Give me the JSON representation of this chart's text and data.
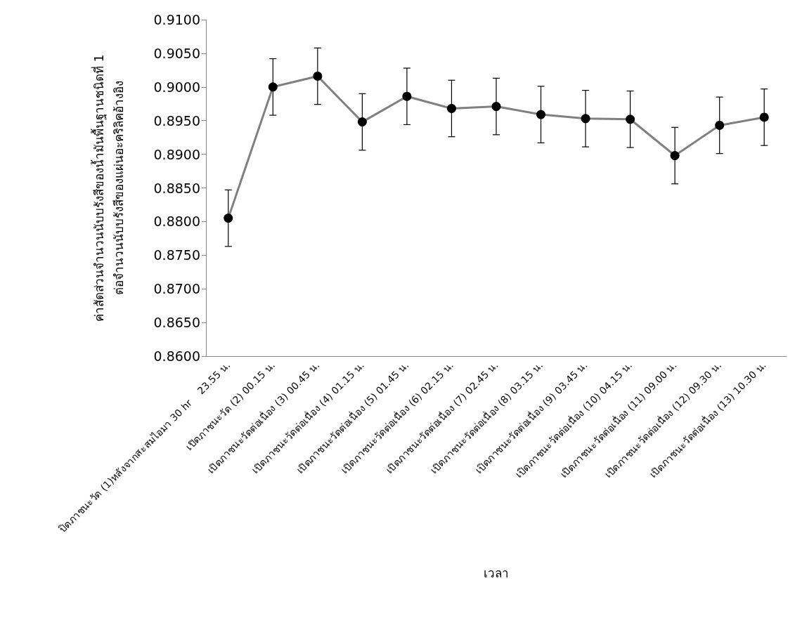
{
  "chart_data": {
    "type": "line",
    "xlabel": "เวลา",
    "ylabel": "ค่าสัดส่วนจำนวนนับบรังสีของน้ำมันพื้นฐานชนิดที่ 1\nต่อจำนวนนับบรังสีของแผ่นอะคริลิคอ้างอิง",
    "categories": [
      "ปิดภาชนะวัด (1)หลังจากสะสมไอมา 30 hr    23.55 น.",
      "เปิดภาชนะวัด (2) 00.15 น.",
      "เปิดภาชนะวัดต่อเนื่อง (3) 00.45 น.",
      "เปิดภาชนะวัดต่อเนื่อง (4) 01.15 น.",
      "เปิดภาชนะวัดต่อเนื่อง (5) 01.45 น.",
      "เปิดภาชนะวัดต่อเนื่อง (6) 02.15 น.",
      "เปิดภาชนะวัดต่อเนื่อง (7) 02.45 น.",
      "เปิดภาชนะวัดต่อเนื่อง (8) 03.15 น.",
      "เปิดภาชนะวัดต่อเนื่อง (9) 03.45 น.",
      "เปิดภาชนะวัดต่อเนื่อง (10) 04.15 น.",
      "เปิดภาชนะวัดต่อเนื่อง (11) 09.00 น.",
      "เปิดภาชนะวัดต่อเนื่อง (12) 09.30 น.",
      "เปิดภาชนะวัดต่อเนื่อง (13) 10.30 น."
    ],
    "series": [
      {
        "color": "#808080",
        "values": [
          0.8805,
          0.9,
          0.9016,
          0.8948,
          0.8986,
          0.8968,
          0.8971,
          0.8959,
          0.8953,
          0.8952,
          0.8898,
          0.8943,
          0.8955
        ],
        "errors": [
          0.0042,
          0.0042,
          0.0042,
          0.0042,
          0.0042,
          0.0042,
          0.0042,
          0.0042,
          0.0042,
          0.0042,
          0.0042,
          0.0042,
          0.0042
        ]
      }
    ],
    "ylim": [
      0.86,
      0.91
    ],
    "yticks": [
      {
        "value": 0.86,
        "label": "0.8600"
      },
      {
        "value": 0.865,
        "label": "0.8650"
      },
      {
        "value": 0.87,
        "label": "0.8700"
      },
      {
        "value": 0.875,
        "label": "0.8750"
      },
      {
        "value": 0.88,
        "label": "0.8800"
      },
      {
        "value": 0.885,
        "label": "0.8850"
      },
      {
        "value": 0.89,
        "label": "0.8900"
      },
      {
        "value": 0.895,
        "label": "0.8950"
      },
      {
        "value": 0.9,
        "label": "0.9000"
      },
      {
        "value": 0.905,
        "label": "0.9050"
      },
      {
        "value": 0.91,
        "label": "0.9100"
      }
    ],
    "grid": false,
    "marker": "circle",
    "line_style": "solid"
  }
}
